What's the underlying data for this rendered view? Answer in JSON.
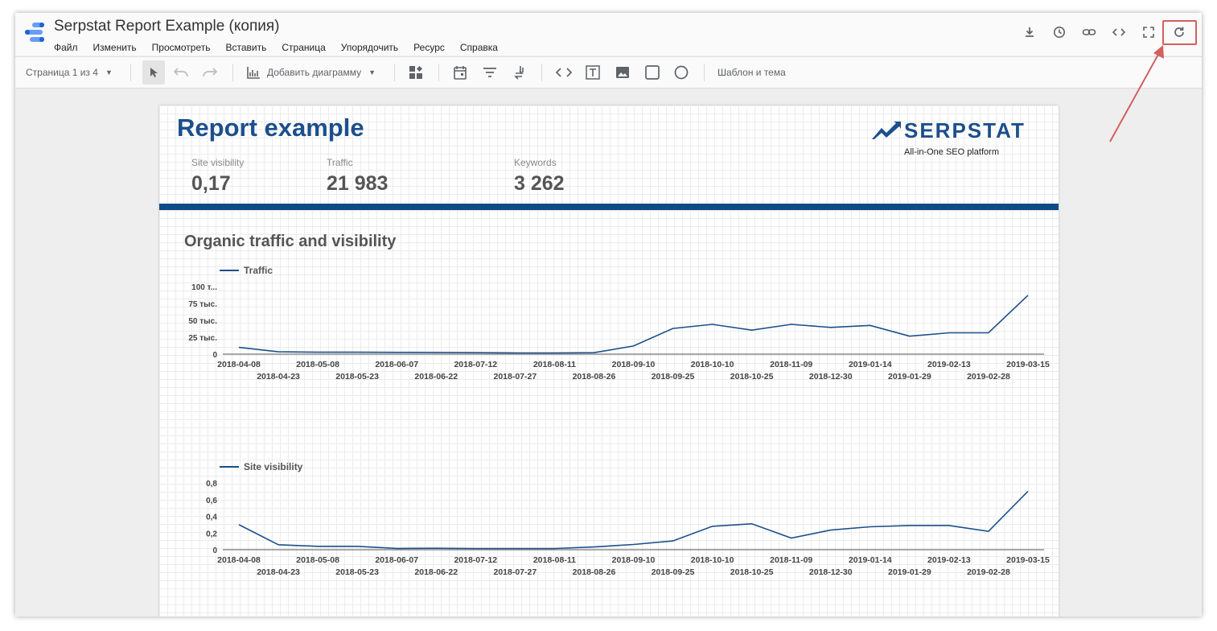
{
  "app": {
    "title": "Serpstat Report Example (копия)",
    "menu": [
      "Файл",
      "Изменить",
      "Просмотреть",
      "Вставить",
      "Страница",
      "Упорядочить",
      "Ресурс",
      "Справка"
    ],
    "top_icons": [
      "download-icon",
      "history-icon",
      "link-icon",
      "embed-icon",
      "fullscreen-icon",
      "refresh-icon"
    ],
    "highlight_color": "#d35f5f"
  },
  "toolbar": {
    "page_selector": "Страница 1 из 4",
    "add_chart": "Добавить диаграмму",
    "theme": "Шаблон и тема"
  },
  "report": {
    "title": "Report example",
    "brand_name": "SERPSTAT",
    "brand_tagline": "All-in-One SEO platform",
    "accent_color": "#1c4f8c",
    "metrics": [
      {
        "label": "Site visibility",
        "value": "0,17"
      },
      {
        "label": "Traffic",
        "value": "21 983"
      },
      {
        "label": "Keywords",
        "value": "3 262"
      }
    ],
    "section_title": "Organic traffic and visibility"
  },
  "chart_data": [
    {
      "type": "line",
      "series": [
        {
          "name": "Traffic",
          "color": "#1c4f8c",
          "values": [
            10000,
            3500,
            2800,
            2900,
            2600,
            2500,
            2200,
            1800,
            1800,
            2200,
            12000,
            38000,
            44000,
            35500,
            44000,
            39500,
            42500,
            26500,
            31500,
            31500,
            87000
          ]
        }
      ],
      "x": [
        "2018-04-08",
        "2018-04-23",
        "2018-05-08",
        "2018-05-23",
        "2018-06-07",
        "2018-06-22",
        "2018-07-12",
        "2018-07-27",
        "2018-08-11",
        "2018-08-26",
        "2018-09-10",
        "2018-09-25",
        "2018-10-10",
        "2018-10-25",
        "2018-11-09",
        "2018-12-30",
        "2019-01-14",
        "2019-01-29",
        "2019-02-13",
        "2019-02-28",
        "2019-03-15"
      ],
      "ylim": [
        0,
        100000
      ],
      "yticks": [
        {
          "v": 0,
          "label": "0"
        },
        {
          "v": 25000,
          "label": "25 тыс."
        },
        {
          "v": 50000,
          "label": "50 тыс."
        },
        {
          "v": 75000,
          "label": "75 тыс."
        },
        {
          "v": 100000,
          "label": "100 т..."
        }
      ],
      "legend": "top-left",
      "grid": false
    },
    {
      "type": "line",
      "series": [
        {
          "name": "Site visibility",
          "color": "#1c4f8c",
          "values": [
            0.3,
            0.06,
            0.04,
            0.04,
            0.015,
            0.017,
            0.014,
            0.014,
            0.014,
            0.033,
            0.063,
            0.105,
            0.28,
            0.31,
            0.14,
            0.235,
            0.275,
            0.29,
            0.29,
            0.22,
            0.7
          ]
        }
      ],
      "x": [
        "2018-04-08",
        "2018-04-23",
        "2018-05-08",
        "2018-05-23",
        "2018-06-07",
        "2018-06-22",
        "2018-07-12",
        "2018-07-27",
        "2018-08-11",
        "2018-08-26",
        "2018-09-10",
        "2018-09-25",
        "2018-10-10",
        "2018-10-25",
        "2018-11-09",
        "2018-12-30",
        "2019-01-14",
        "2019-01-29",
        "2019-02-13",
        "2019-02-28",
        "2019-03-15"
      ],
      "ylim": [
        0,
        0.8
      ],
      "yticks": [
        {
          "v": 0,
          "label": "0"
        },
        {
          "v": 0.2,
          "label": "0,2"
        },
        {
          "v": 0.4,
          "label": "0,4"
        },
        {
          "v": 0.6,
          "label": "0,6"
        },
        {
          "v": 0.8,
          "label": "0,8"
        }
      ],
      "legend": "top-left",
      "grid": false
    }
  ]
}
